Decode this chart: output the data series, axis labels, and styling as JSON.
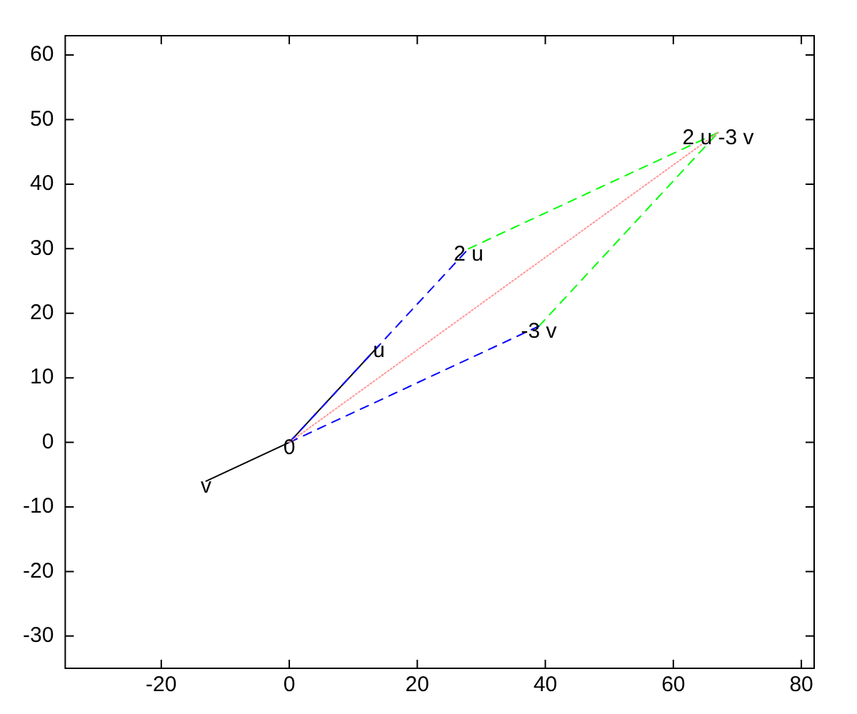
{
  "chart_data": {
    "type": "line",
    "xlim": [
      -35,
      82
    ],
    "ylim": [
      -35,
      63
    ],
    "xticks": [
      -20,
      0,
      20,
      40,
      60,
      80
    ],
    "yticks": [
      -30,
      -20,
      -10,
      0,
      10,
      20,
      30,
      40,
      50,
      60
    ],
    "grid": false,
    "legend": false,
    "marker": "none",
    "series": [
      {
        "color": "#ff9999",
        "line_style": "dotted",
        "x": [
          0,
          67
        ],
        "values": [
          0,
          48
        ]
      },
      {
        "color": "#0000ff",
        "line_style": "dashed",
        "x": [
          0,
          28
        ],
        "values": [
          0,
          30
        ]
      },
      {
        "color": "#0000ff",
        "line_style": "dashed",
        "x": [
          0,
          39
        ],
        "values": [
          0,
          18
        ]
      },
      {
        "color": "#00ff00",
        "line_style": "dashed",
        "x": [
          28,
          67
        ],
        "values": [
          30,
          48
        ]
      },
      {
        "color": "#00ff00",
        "line_style": "dashed",
        "x": [
          39,
          67
        ],
        "values": [
          18,
          48
        ]
      },
      {
        "color": "#000000",
        "line_style": "solid",
        "x": [
          14,
          0,
          -13
        ],
        "values": [
          15,
          0,
          -6
        ]
      }
    ],
    "annotations": [
      {
        "text": "0",
        "x": 0,
        "y": 0
      },
      {
        "text": "u",
        "x": 14,
        "y": 15
      },
      {
        "text": "v",
        "x": -13,
        "y": -6
      },
      {
        "text": "2 u",
        "x": 28,
        "y": 30
      },
      {
        "text": "-3 v",
        "x": 39,
        "y": 18
      },
      {
        "text": "2 u -3 v",
        "x": 67,
        "y": 48
      }
    ]
  }
}
